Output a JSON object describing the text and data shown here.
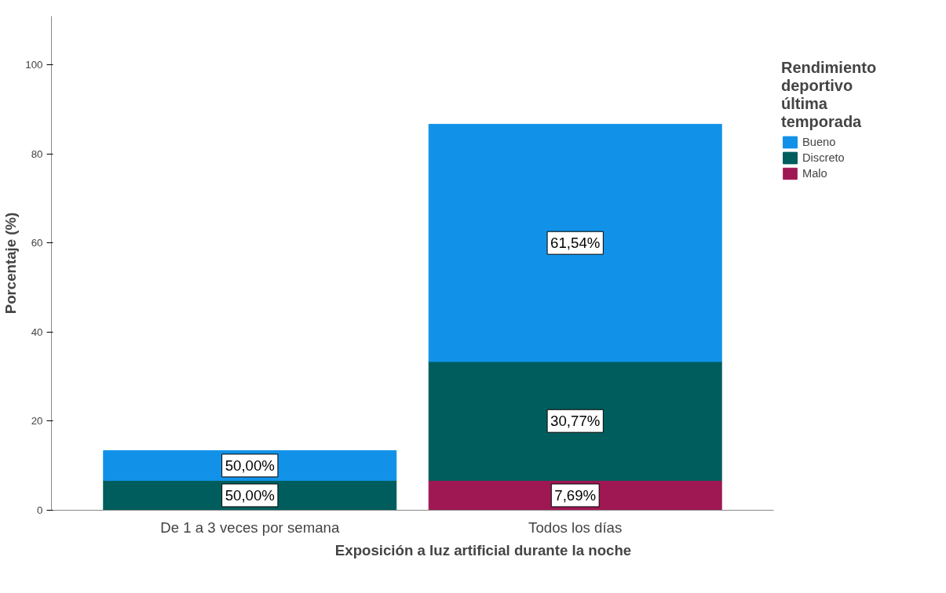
{
  "chart_data": {
    "type": "bar",
    "stacked": true,
    "xlabel": "Exposición a luz artificial durante la noche",
    "ylabel": "Porcentaje (%)",
    "legend_title": "Rendimiento deportivo última temporada",
    "categories": [
      "De 1 a 3 veces por semana",
      "Todos los días"
    ],
    "series": [
      {
        "name": "Malo",
        "color": "#9f1853",
        "values": [
          null,
          6.7
        ]
      },
      {
        "name": "Discreto",
        "color": "#005d5d",
        "values": [
          6.7,
          26.7
        ]
      },
      {
        "name": "Bueno",
        "color": "#1192e8",
        "values": [
          6.7,
          53.3
        ]
      }
    ],
    "annotations": [
      "7,69%",
      "50,00%",
      "30,77%",
      "50,00%",
      "61,54%"
    ],
    "ylim": [
      0,
      111
    ],
    "yticks": [
      0,
      20,
      40,
      60,
      80,
      100
    ],
    "grid": false,
    "legend": "top right"
  }
}
